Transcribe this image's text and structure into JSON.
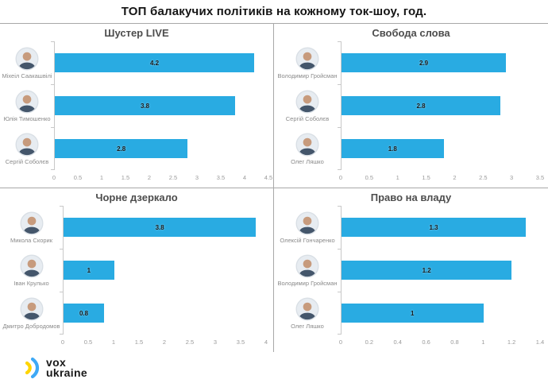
{
  "title": "ТОП балакучих політиків на кожному ток-шоу, год.",
  "accent_color": "#29abe2",
  "divider_color": "#a8a8a8",
  "logo": {
    "line1": "vox",
    "line2": "ukraine",
    "arc_inner_color": "#ffd500",
    "arc_outer_color": "#3fa9f5"
  },
  "chart_data": [
    {
      "type": "bar",
      "orientation": "horizontal",
      "title": "Шустер LIVE",
      "categories": [
        "Міхеіл Саакашвілі",
        "Юлія Тимошенко",
        "Сергій Соболєв"
      ],
      "values": [
        4.2,
        3.8,
        2.8
      ],
      "value_labels": [
        "4.2",
        "3.8",
        "2.8"
      ],
      "xlim": [
        0,
        4.5
      ],
      "ticks": [
        "0",
        "0.5",
        "1",
        "1.5",
        "2",
        "2.5",
        "3",
        "3.5",
        "4",
        "4.5"
      ],
      "grid": "off",
      "legend": "none",
      "bar_color": "#29abe2"
    },
    {
      "type": "bar",
      "orientation": "horizontal",
      "title": "Свобода слова",
      "categories": [
        "Володимир Гройсман",
        "Сергій Соболєв",
        "Олег Ляшко"
      ],
      "values": [
        2.9,
        2.8,
        1.8
      ],
      "value_labels": [
        "2.9",
        "2.8",
        "1.8"
      ],
      "xlim": [
        0,
        3.5
      ],
      "ticks": [
        "0",
        "0.5",
        "1",
        "1.5",
        "2",
        "2.5",
        "3",
        "3.5"
      ],
      "grid": "off",
      "legend": "none",
      "bar_color": "#29abe2"
    },
    {
      "type": "bar",
      "orientation": "horizontal",
      "title": "Чорне дзеркало",
      "categories": [
        "Микола Скорик",
        "Іван Крулько",
        "Дмитро Добродомов"
      ],
      "values": [
        3.8,
        1,
        0.8
      ],
      "value_labels": [
        "3.8",
        "1",
        "0.8"
      ],
      "xlim": [
        0,
        4
      ],
      "ticks": [
        "0",
        "0.5",
        "1",
        "1.5",
        "2",
        "2.5",
        "3",
        "3.5",
        "4"
      ],
      "grid": "off",
      "legend": "none",
      "bar_color": "#29abe2"
    },
    {
      "type": "bar",
      "orientation": "horizontal",
      "title": "Право на владу",
      "categories": [
        "Олексій Гончаренко",
        "Володимир Гройсман",
        "Олег Ляшко"
      ],
      "values": [
        1.3,
        1.2,
        1
      ],
      "value_labels": [
        "1.3",
        "1.2",
        "1"
      ],
      "xlim": [
        0,
        1.4
      ],
      "ticks": [
        "0",
        "0.2",
        "0.4",
        "0.6",
        "0.8",
        "1",
        "1.2",
        "1.4"
      ],
      "grid": "off",
      "legend": "none",
      "bar_color": "#29abe2"
    }
  ]
}
